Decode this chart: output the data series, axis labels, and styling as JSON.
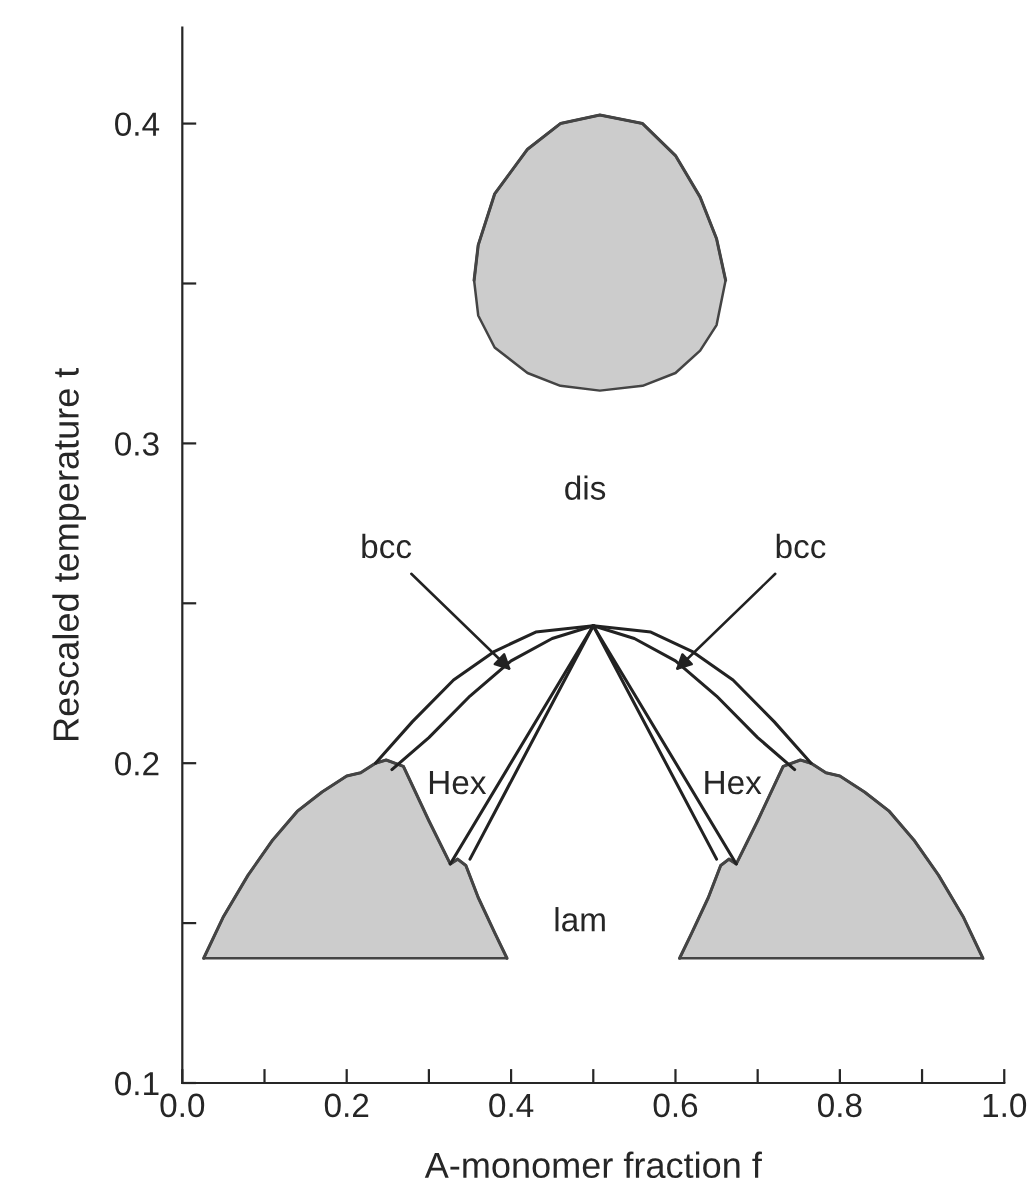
{
  "chart_data": {
    "type": "line",
    "xlabel": "A-monomer fraction f",
    "ylabel": "Rescaled temperature t",
    "xlim": [
      0.0,
      1.0
    ],
    "ylim": [
      0.1,
      0.43
    ],
    "xticks": [
      {
        "value": 0.0,
        "label": "0.0"
      },
      {
        "value": 0.1,
        "label": null
      },
      {
        "value": 0.2,
        "label": "0.2"
      },
      {
        "value": 0.3,
        "label": null
      },
      {
        "value": 0.4,
        "label": "0.4"
      },
      {
        "value": 0.5,
        "label": null
      },
      {
        "value": 0.6,
        "label": "0.6"
      },
      {
        "value": 0.7,
        "label": null
      },
      {
        "value": 0.8,
        "label": "0.8"
      },
      {
        "value": 0.9,
        "label": null
      },
      {
        "value": 1.0,
        "label": "1.0"
      }
    ],
    "yticks": [
      0.1,
      {
        "value": 0.15,
        "label": null
      },
      0.2,
      {
        "value": 0.25,
        "label": null
      },
      0.3,
      {
        "value": 0.35,
        "label": null
      },
      0.4
    ],
    "grid": false,
    "legend": false,
    "marker": "none",
    "line_style": "solid",
    "series": [
      {
        "color": "#444444",
        "x": [
          0.355,
          0.36,
          0.38,
          0.42,
          0.46,
          0.508,
          0.56,
          0.6,
          0.63,
          0.65,
          0.661
        ],
        "values": [
          0.351,
          0.362,
          0.378,
          0.392,
          0.4,
          0.4027,
          0.4,
          0.39,
          0.377,
          0.364,
          0.351
        ],
        "lower": [
          0.351,
          0.34,
          0.33,
          0.322,
          0.318,
          0.3165,
          0.318,
          0.322,
          0.329,
          0.337,
          0.351
        ],
        "upper": [
          0.351,
          0.362,
          0.378,
          0.392,
          0.4,
          0.4027,
          0.4,
          0.39,
          0.377,
          0.364,
          0.351
        ]
      },
      {
        "color": "#444444",
        "x": [
          0.026,
          0.05,
          0.08,
          0.11,
          0.14,
          0.17,
          0.2,
          0.217,
          0.235,
          0.248,
          0.269,
          0.3,
          0.326,
          0.335,
          0.345,
          0.36,
          0.38,
          0.395
        ],
        "values": [
          0.139,
          0.152,
          0.165,
          0.176,
          0.185,
          0.191,
          0.196,
          0.197,
          0.2,
          0.201,
          0.199,
          0.182,
          0.1685,
          0.17,
          0.168,
          0.158,
          0.147,
          0.139
        ],
        "lower": [
          0.139,
          0.139,
          0.139,
          0.139,
          0.139,
          0.139,
          0.139,
          0.139,
          0.139,
          0.139,
          0.139,
          0.139,
          0.139,
          0.139,
          0.139,
          0.139,
          0.139,
          0.139
        ],
        "upper": [
          0.139,
          0.152,
          0.165,
          0.176,
          0.185,
          0.191,
          0.196,
          0.197,
          0.2,
          0.201,
          0.199,
          0.182,
          0.1685,
          0.17,
          0.168,
          0.158,
          0.147,
          0.139
        ]
      },
      {
        "color": "#444444",
        "x": [
          0.605,
          0.62,
          0.64,
          0.655,
          0.665,
          0.674,
          0.7,
          0.731,
          0.752,
          0.765,
          0.783,
          0.8,
          0.83,
          0.86,
          0.89,
          0.92,
          0.95,
          0.974
        ],
        "values": [
          0.139,
          0.147,
          0.158,
          0.168,
          0.17,
          0.1685,
          0.182,
          0.199,
          0.201,
          0.2,
          0.197,
          0.196,
          0.191,
          0.185,
          0.176,
          0.165,
          0.152,
          0.139
        ],
        "lower": [
          0.139,
          0.139,
          0.139,
          0.139,
          0.139,
          0.139,
          0.139,
          0.139,
          0.139,
          0.139,
          0.139,
          0.139,
          0.139,
          0.139,
          0.139,
          0.139,
          0.139,
          0.139
        ],
        "upper": [
          0.139,
          0.147,
          0.158,
          0.168,
          0.17,
          0.1685,
          0.182,
          0.199,
          0.201,
          0.2,
          0.197,
          0.196,
          0.191,
          0.185,
          0.176,
          0.165,
          0.152,
          0.139
        ]
      },
      {
        "color": "#222222",
        "x": [
          0.235,
          0.28,
          0.33,
          0.38,
          0.43,
          0.5,
          0.57,
          0.62,
          0.67,
          0.72,
          0.765
        ],
        "values": [
          0.2,
          0.213,
          0.226,
          0.235,
          0.241,
          0.243,
          0.241,
          0.235,
          0.226,
          0.213,
          0.2
        ]
      },
      {
        "name": "bcc",
        "color": "#222222",
        "x": [
          0.255,
          0.3,
          0.35,
          0.4,
          0.45,
          0.5
        ],
        "values": [
          0.198,
          0.208,
          0.221,
          0.232,
          0.239,
          0.243
        ]
      },
      {
        "name": "bcc",
        "color": "#222222",
        "x": [
          0.5,
          0.55,
          0.6,
          0.65,
          0.7,
          0.745
        ],
        "values": [
          0.243,
          0.239,
          0.232,
          0.221,
          0.208,
          0.198
        ]
      },
      {
        "color": "#222222",
        "x": [
          0.326,
          0.5,
          0.674
        ],
        "values": [
          0.1685,
          0.243,
          0.1685
        ]
      },
      {
        "color": "#222222",
        "x": [
          0.35,
          0.5,
          0.65
        ],
        "values": [
          0.17,
          0.243,
          0.17
        ]
      }
    ],
    "annotations": [
      "dis",
      "Hex",
      "Hex",
      "lam"
    ]
  }
}
